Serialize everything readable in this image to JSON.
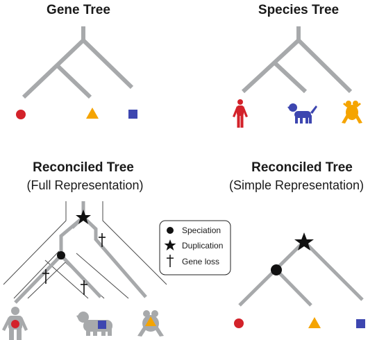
{
  "panels": {
    "gene_tree": {
      "title": "Gene Tree"
    },
    "species_tree": {
      "title": "Species Tree"
    },
    "reconciled_full": {
      "title": "Reconciled Tree",
      "subtitle": "(Full Representation)"
    },
    "reconciled_simple": {
      "title": "Reconciled Tree",
      "subtitle": "(Simple Representation)"
    }
  },
  "legend": {
    "items": [
      {
        "icon": "circle-icon",
        "label": "Speciation"
      },
      {
        "icon": "star-icon",
        "label": "Duplication"
      },
      {
        "icon": "dagger-icon",
        "label": "Gene loss"
      }
    ]
  },
  "colors": {
    "branch": "#a7a9ab",
    "red": "#d3222a",
    "orange": "#f5a400",
    "blue": "#3d46b0",
    "silhouette": "#a7a9ab",
    "marker": "#111111"
  }
}
